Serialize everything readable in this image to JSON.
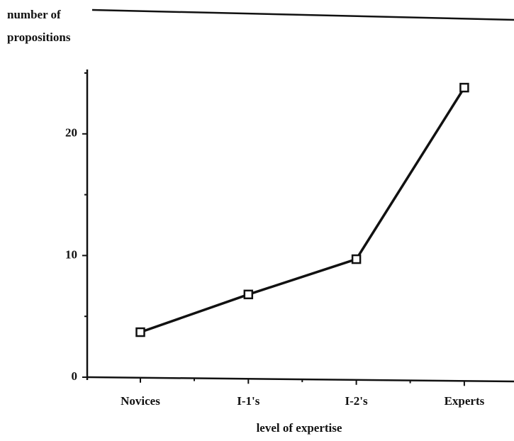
{
  "chart_data": {
    "type": "line",
    "y_label": [
      "number of",
      "propositions"
    ],
    "x_label": "level of expertise",
    "categories": [
      "Novices",
      "I-1's",
      "I-2's",
      "Experts"
    ],
    "series": [
      {
        "name": "propositions",
        "color": "#111111",
        "values": [
          3.7,
          6.8,
          9.7,
          23.8
        ]
      }
    ],
    "ylim": [
      0,
      25
    ],
    "yticks": [
      0,
      10,
      20
    ],
    "minor_yticks": [
      5,
      15,
      25
    ]
  }
}
